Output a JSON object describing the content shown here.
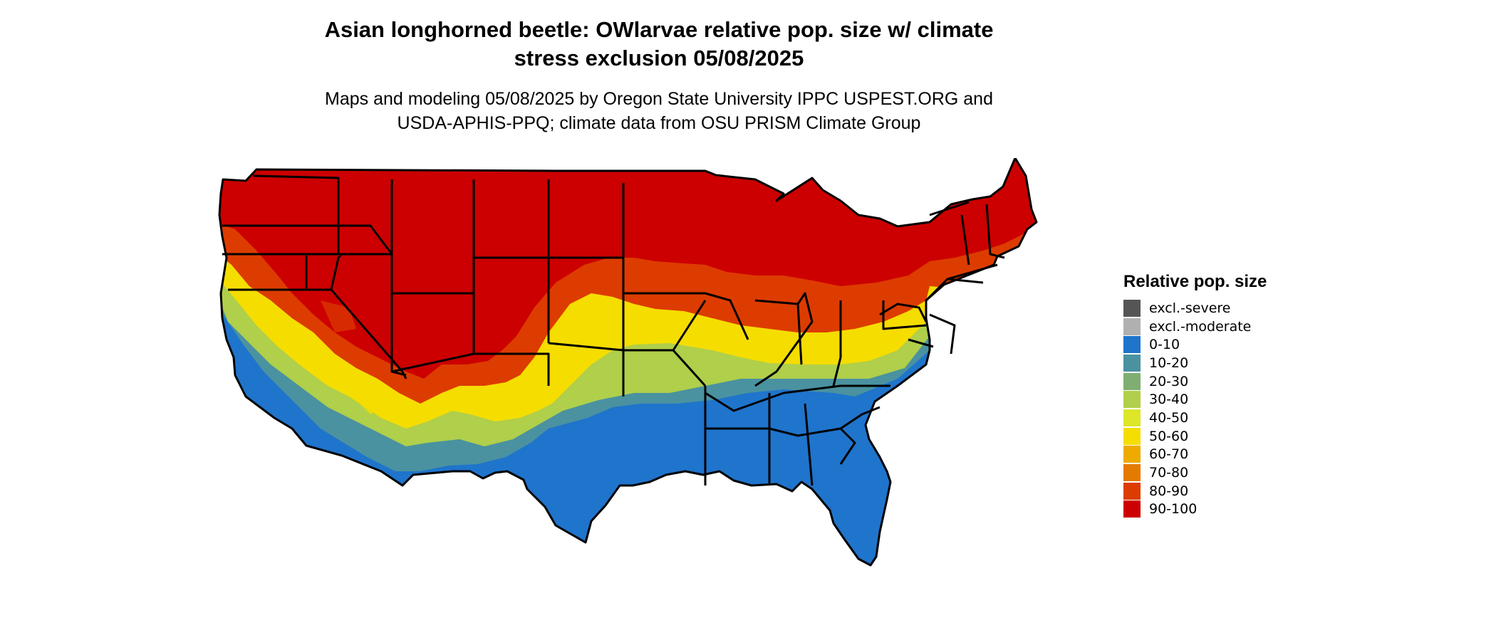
{
  "title_line1": "Asian longhorned beetle: OWlarvae relative pop. size w/ climate",
  "title_line2": "stress exclusion 05/08/2025",
  "subtitle_line1": "Maps and modeling 05/08/2025 by Oregon State University IPPC USPEST.ORG and",
  "subtitle_line2": "USDA-APHIS-PPQ; climate data from OSU PRISM Climate Group",
  "legend": {
    "title": "Relative pop. size",
    "items": [
      {
        "label": "excl.-severe",
        "color": "#555555"
      },
      {
        "label": "excl.-moderate",
        "color": "#b0b0b0"
      },
      {
        "label": "0-10",
        "color": "#1f74cc"
      },
      {
        "label": "10-20",
        "color": "#4a92a0"
      },
      {
        "label": "20-30",
        "color": "#7fae72"
      },
      {
        "label": "30-40",
        "color": "#b0cf4a"
      },
      {
        "label": "40-50",
        "color": "#dde629"
      },
      {
        "label": "50-60",
        "color": "#f5dd00"
      },
      {
        "label": "60-70",
        "color": "#eeaa00"
      },
      {
        "label": "70-80",
        "color": "#e57a00"
      },
      {
        "label": "80-90",
        "color": "#dd3c00"
      },
      {
        "label": "90-100",
        "color": "#cc0000"
      }
    ]
  }
}
